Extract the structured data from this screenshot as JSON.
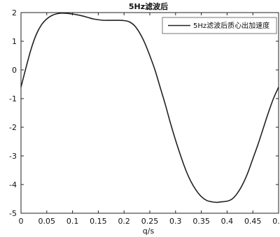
{
  "chart_data": {
    "type": "line",
    "title": "5Hz滤波后",
    "xlabel": "q/s",
    "ylabel": "",
    "xlim": [
      0,
      0.5
    ],
    "ylim": [
      -5,
      2
    ],
    "grid": false,
    "legend_position": "top-right",
    "x_ticks": [
      0,
      0.05,
      0.1,
      0.15,
      0.2,
      0.25,
      0.3,
      0.35,
      0.4,
      0.45,
      0.5
    ],
    "x_tick_labels": [
      "0",
      "0.05",
      "0.1",
      "0.15",
      "0.2",
      "0.25",
      "0.3",
      "0.35",
      "0.4",
      "0.45",
      "0.5"
    ],
    "y_ticks": [
      -5,
      -4,
      -3,
      -2,
      -1,
      0,
      1,
      2
    ],
    "y_tick_labels": [
      "-5",
      "-4",
      "-3",
      "-2",
      "-1",
      "0",
      "1",
      "2"
    ],
    "series": [
      {
        "name": "5Hz滤波后质心出加速度",
        "color": "#222222",
        "x": [
          0,
          0.01,
          0.02,
          0.03,
          0.04,
          0.05,
          0.06,
          0.07,
          0.08,
          0.09,
          0.1,
          0.11,
          0.12,
          0.13,
          0.14,
          0.15,
          0.16,
          0.17,
          0.18,
          0.19,
          0.2,
          0.21,
          0.22,
          0.23,
          0.24,
          0.25,
          0.26,
          0.27,
          0.28,
          0.29,
          0.3,
          0.31,
          0.32,
          0.33,
          0.34,
          0.35,
          0.36,
          0.37,
          0.38,
          0.39,
          0.4,
          0.41,
          0.42,
          0.43,
          0.44,
          0.45,
          0.46,
          0.47,
          0.48,
          0.49,
          0.5
        ],
        "y": [
          -0.6,
          0.1,
          0.75,
          1.25,
          1.58,
          1.78,
          1.9,
          1.96,
          1.98,
          1.97,
          1.95,
          1.92,
          1.88,
          1.83,
          1.78,
          1.75,
          1.73,
          1.73,
          1.73,
          1.73,
          1.72,
          1.68,
          1.55,
          1.3,
          0.95,
          0.5,
          0.0,
          -0.6,
          -1.2,
          -1.85,
          -2.45,
          -3.0,
          -3.5,
          -3.9,
          -4.2,
          -4.42,
          -4.55,
          -4.6,
          -4.62,
          -4.6,
          -4.58,
          -4.5,
          -4.3,
          -4.0,
          -3.6,
          -3.1,
          -2.6,
          -2.05,
          -1.5,
          -1.0,
          -0.6
        ]
      }
    ]
  }
}
